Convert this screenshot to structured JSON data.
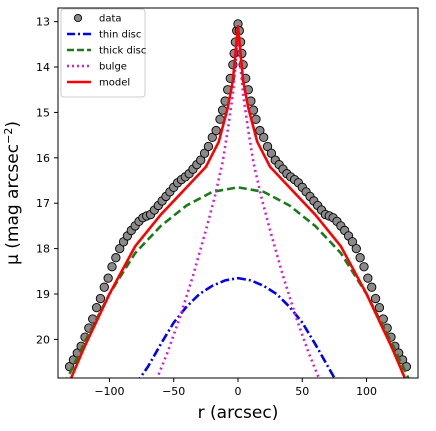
{
  "chart_data": {
    "type": "scatter",
    "title": "",
    "xlabel": "r (arcsec)",
    "ylabel_main": "μ (mag arcsec",
    "ylabel_exp": "−2",
    "ylabel_close": ")",
    "xlim": [
      -140,
      140
    ],
    "ylim": [
      20.85,
      12.7
    ],
    "y_inverted": true,
    "grid": false,
    "legend_position": "top-left",
    "x_ticks": [
      -100,
      -50,
      0,
      50,
      100
    ],
    "x_tick_labels": [
      "−100",
      "−50",
      "0",
      "50",
      "100"
    ],
    "y_ticks": [
      13,
      14,
      15,
      16,
      17,
      18,
      19,
      20
    ],
    "y_tick_labels": [
      "13",
      "14",
      "15",
      "16",
      "17",
      "18",
      "19",
      "20"
    ],
    "legend": [
      {
        "key": "data",
        "label": "data"
      },
      {
        "key": "thin",
        "label": "thin disc"
      },
      {
        "key": "thick",
        "label": "thick disc"
      },
      {
        "key": "bulge",
        "label": "bulge"
      },
      {
        "key": "model",
        "label": "model"
      }
    ],
    "colors": {
      "data_fill": "#8a8a8a",
      "data_edge": "#000000",
      "thin": "#0000ee",
      "thick": "#1a7a1a",
      "bulge": "#cc22cc",
      "model": "#ff0000"
    },
    "series": [
      {
        "key": "thin",
        "style": "dashdot",
        "x": [
          -80,
          -70,
          -60,
          -50,
          -40,
          -30,
          -20,
          -10,
          0,
          10,
          20,
          30,
          40,
          50,
          60,
          70,
          78
        ],
        "y": [
          21.0,
          20.6,
          20.1,
          19.63,
          19.28,
          19.0,
          18.82,
          18.7,
          18.65,
          18.7,
          18.82,
          19.0,
          19.28,
          19.63,
          20.1,
          20.6,
          21.0
        ]
      },
      {
        "key": "thick",
        "style": "dashed",
        "x": [
          -135,
          -120,
          -100,
          -80,
          -60,
          -40,
          -20,
          0,
          20,
          40,
          60,
          80,
          100,
          120,
          135
        ],
        "y": [
          21.0,
          20.1,
          19.0,
          18.1,
          17.5,
          17.05,
          16.75,
          16.65,
          16.75,
          17.05,
          17.5,
          18.1,
          19.0,
          20.1,
          21.0
        ]
      },
      {
        "key": "bulge",
        "style": "dotted",
        "x": [
          -65,
          -55,
          -45,
          -35,
          -25,
          -18,
          -12,
          -8,
          -4,
          -2,
          0,
          2,
          4,
          8,
          12,
          18,
          25,
          35,
          45,
          55,
          65
        ],
        "y": [
          21.0,
          20.3,
          19.5,
          18.6,
          17.6,
          16.85,
          16.1,
          15.4,
          14.6,
          14.0,
          13.2,
          14.0,
          14.6,
          15.4,
          16.1,
          16.85,
          17.6,
          18.6,
          19.5,
          20.3,
          21.0
        ]
      },
      {
        "key": "model",
        "style": "solid",
        "x": [
          -132,
          -120,
          -100,
          -80,
          -60,
          -40,
          -25,
          -15,
          -8,
          -4,
          0,
          4,
          8,
          15,
          25,
          40,
          60,
          80,
          100,
          120,
          132
        ],
        "y": [
          21.0,
          20.2,
          19.0,
          17.95,
          17.25,
          16.65,
          16.2,
          15.65,
          14.9,
          14.3,
          13.1,
          14.3,
          14.9,
          15.65,
          16.2,
          16.65,
          17.25,
          17.95,
          19.0,
          20.2,
          21.0
        ]
      }
    ],
    "data_points": {
      "x": [
        -131,
        -128,
        -125,
        -122,
        -119,
        -116,
        -113,
        -110,
        -107,
        -104,
        -101,
        -98,
        -95,
        -92,
        -89,
        -86,
        -83,
        -80,
        -77,
        -74,
        -71,
        -68,
        -65,
        -62,
        -59,
        -56,
        -53,
        -50,
        -47,
        -44,
        -41,
        -38,
        -35,
        -32,
        -29,
        -26,
        -23,
        -20,
        -17,
        -14,
        -12,
        -10,
        -8,
        -6,
        -4,
        -3,
        -2,
        -1,
        0,
        1,
        2,
        3,
        4,
        6,
        8,
        10,
        12,
        14,
        17,
        20,
        23,
        26,
        29,
        32,
        35,
        38,
        41,
        44,
        47,
        50,
        53,
        56,
        59,
        62,
        65,
        68,
        71,
        74,
        77,
        80,
        83,
        86,
        89,
        92,
        95,
        98,
        101,
        104,
        107,
        110,
        113,
        116,
        119,
        122,
        125,
        128,
        131
      ],
      "y": [
        20.6,
        20.45,
        20.3,
        20.15,
        19.95,
        19.75,
        19.55,
        19.3,
        19.1,
        18.85,
        18.65,
        18.4,
        18.2,
        18.0,
        17.85,
        17.72,
        17.6,
        17.5,
        17.4,
        17.32,
        17.28,
        17.25,
        17.15,
        17.05,
        16.95,
        16.85,
        16.75,
        16.65,
        16.55,
        16.48,
        16.42,
        16.35,
        16.25,
        16.15,
        16.05,
        15.9,
        15.75,
        15.55,
        15.4,
        15.15,
        14.95,
        14.75,
        14.5,
        14.25,
        13.95,
        13.7,
        13.45,
        13.2,
        13.05,
        13.2,
        13.45,
        13.7,
        13.95,
        14.25,
        14.5,
        14.75,
        14.95,
        15.15,
        15.4,
        15.55,
        15.75,
        15.9,
        16.05,
        16.15,
        16.25,
        16.35,
        16.42,
        16.48,
        16.55,
        16.65,
        16.75,
        16.85,
        16.95,
        17.05,
        17.15,
        17.25,
        17.28,
        17.32,
        17.4,
        17.5,
        17.6,
        17.72,
        17.85,
        18.0,
        18.2,
        18.4,
        18.65,
        18.85,
        19.1,
        19.3,
        19.55,
        19.75,
        19.95,
        20.15,
        20.3,
        20.45,
        20.6
      ]
    }
  }
}
